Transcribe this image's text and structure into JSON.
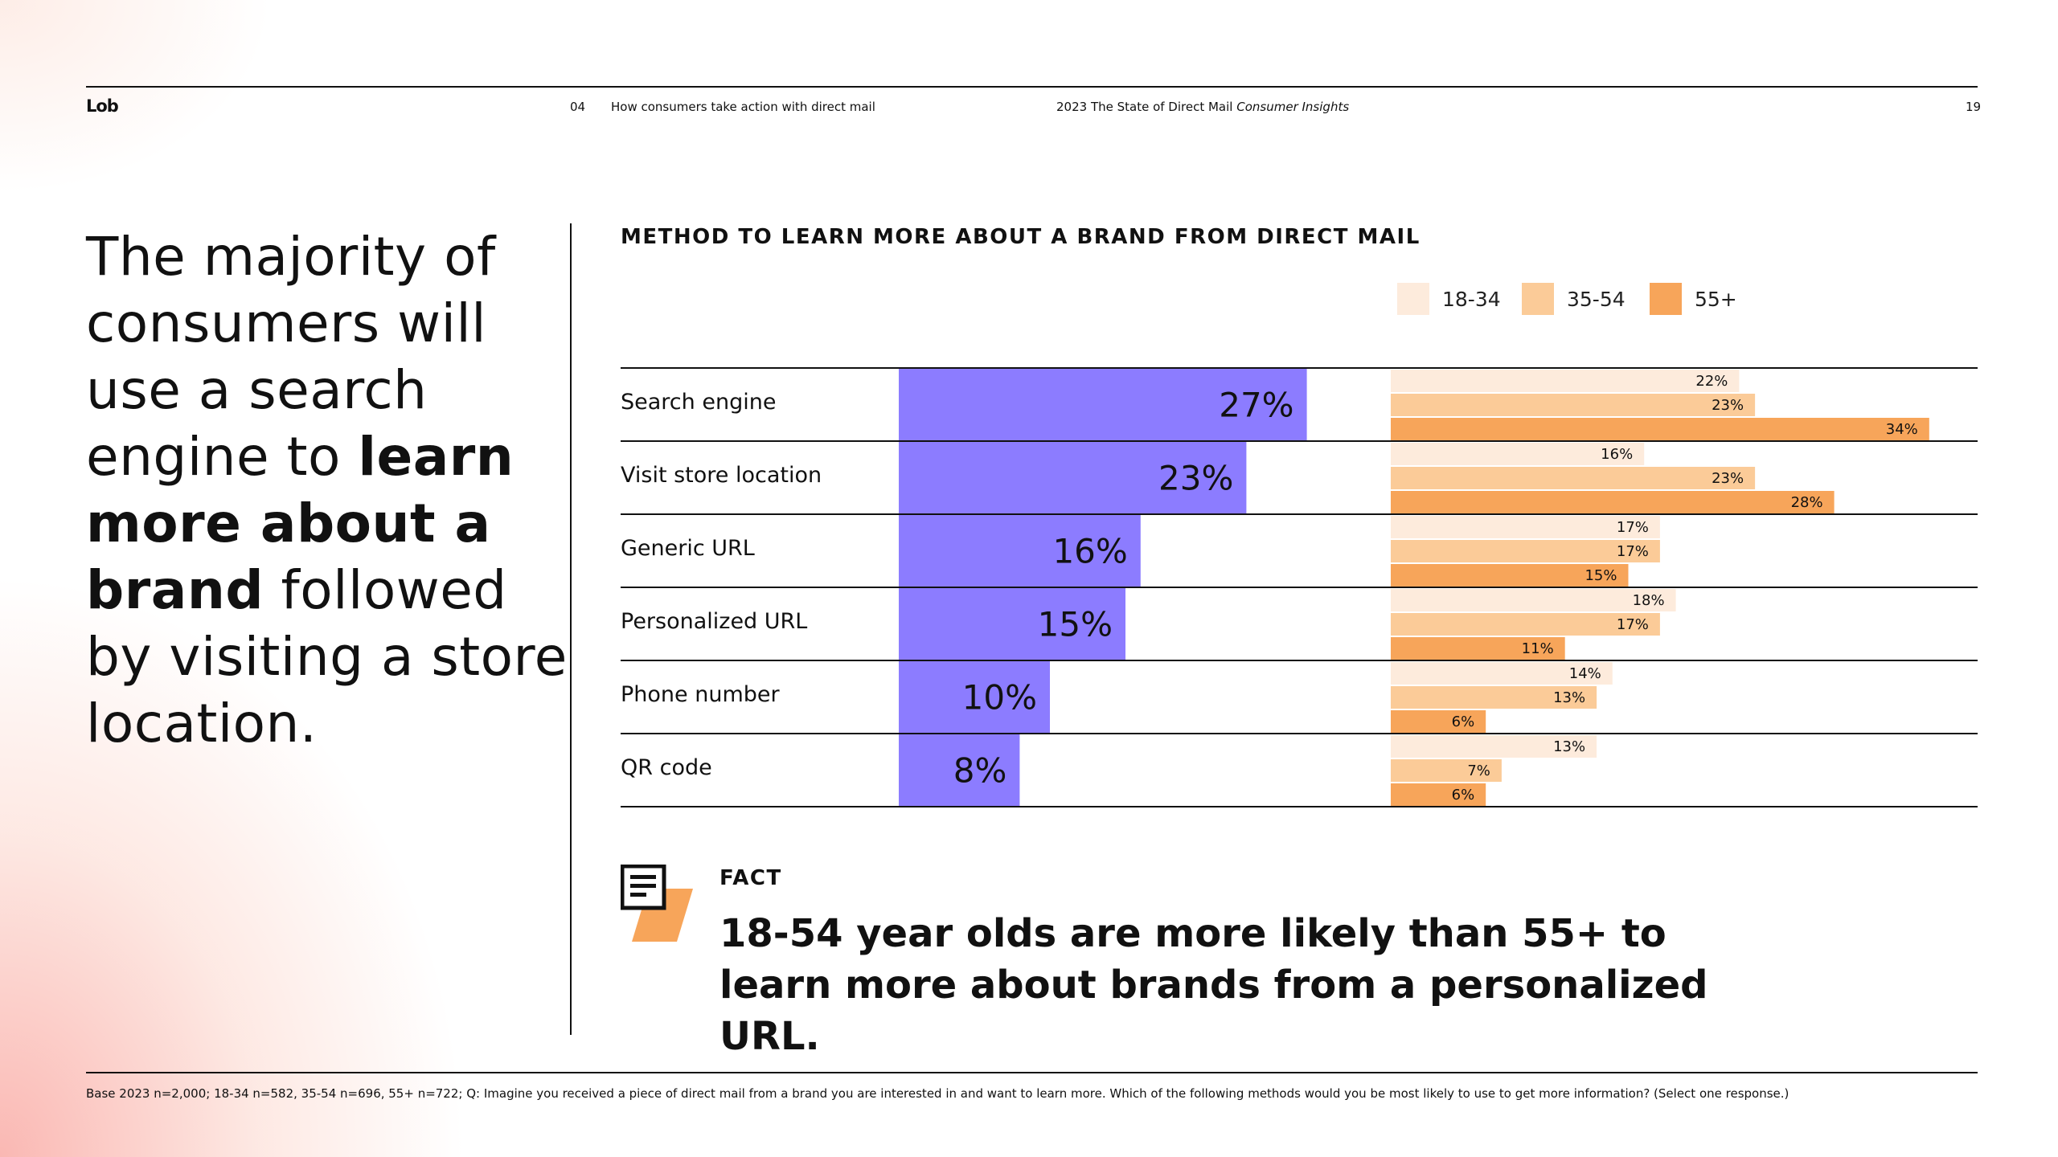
{
  "header": {
    "logo": "Lob",
    "section_number": "04",
    "section_title": "How consumers take action with direct mail",
    "report_title": "2023 The State of Direct Mail",
    "report_title_italic": "Consumer Insights",
    "page_number": "19"
  },
  "headline": {
    "part1": "The majority of consumers will use a search engine to ",
    "bold1": "learn more about a brand",
    "part2": " followed by visiting a store location."
  },
  "colors": {
    "total_bar": "#8C7CFF",
    "age_18_34": "#FDEBDC",
    "age_35_54": "#FBCB98",
    "age_55_plus": "#F7A55A",
    "rule": "#111111"
  },
  "chart_data": {
    "type": "bar",
    "orientation": "horizontal",
    "title": "METHOD TO LEARN MORE ABOUT A BRAND FROM DIRECT MAIL",
    "categories": [
      "Search engine",
      "Visit store location",
      "Generic URL",
      "Personalized URL",
      "Phone number",
      "QR code"
    ],
    "total": {
      "values": [
        27,
        23,
        16,
        15,
        10,
        8
      ],
      "labels": [
        "27%",
        "23%",
        "16%",
        "15%",
        "10%",
        "8%"
      ]
    },
    "series": [
      {
        "name": "18-34",
        "values": [
          22,
          16,
          17,
          18,
          14,
          13
        ],
        "labels": [
          "22%",
          "16%",
          "17%",
          "18%",
          "14%",
          "13%"
        ]
      },
      {
        "name": "35-54",
        "values": [
          23,
          23,
          17,
          17,
          13,
          7
        ],
        "labels": [
          "23%",
          "23%",
          "17%",
          "17%",
          "13%",
          "7%"
        ]
      },
      {
        "name": "55+",
        "values": [
          34,
          28,
          15,
          11,
          6,
          6
        ],
        "labels": [
          "34%",
          "28%",
          "15%",
          "11%",
          "6%",
          "6%"
        ]
      }
    ],
    "legend_position": "top-right",
    "grid": false
  },
  "fact": {
    "label": "FACT",
    "text": "18-54 year olds are more likely than 55+ to learn more about brands from a personalized URL."
  },
  "footnote": "Base 2023 n=2,000; 18-34 n=582, 35-54 n=696, 55+ n=722; Q: Imagine you received a piece of direct mail from a brand you are interested in and want to learn more. Which of the following methods would you be most likely to use to get more information?  (Select one response.)"
}
